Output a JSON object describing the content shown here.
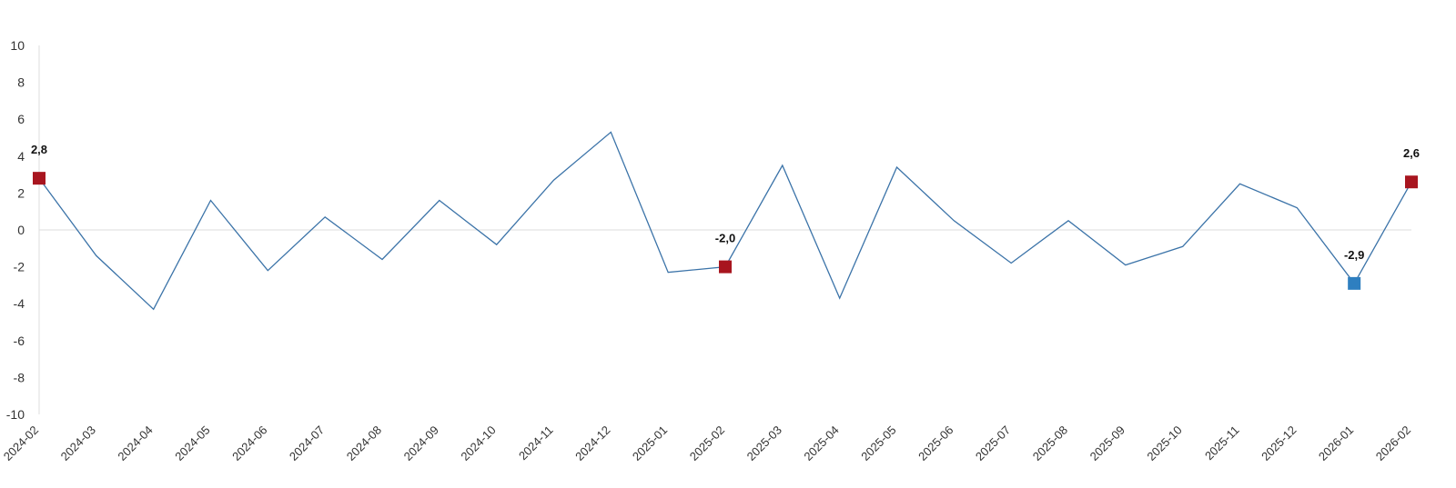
{
  "chart_data": {
    "type": "line",
    "title": "",
    "xlabel": "",
    "ylabel": "",
    "ylim": [
      -10,
      10
    ],
    "yticks": [
      10,
      8,
      6,
      4,
      2,
      0,
      -2,
      -4,
      -6,
      -8,
      -10
    ],
    "grid": false,
    "legend": "none",
    "categories": [
      "2024-02",
      "2024-03",
      "2024-04",
      "2024-05",
      "2024-06",
      "2024-07",
      "2024-08",
      "2024-09",
      "2024-10",
      "2024-11",
      "2024-12",
      "2025-01",
      "2025-02",
      "2025-03",
      "2025-04",
      "2025-05",
      "2025-06",
      "2025-07",
      "2025-08",
      "2025-09",
      "2025-10",
      "2025-11",
      "2025-12",
      "2026-01",
      "2026-02"
    ],
    "series": [
      {
        "color": "#3b73a8",
        "values": [
          2.8,
          -1.4,
          -4.3,
          1.6,
          -2.2,
          0.7,
          -1.6,
          1.6,
          -0.8,
          2.7,
          5.3,
          -2.3,
          -2.0,
          3.5,
          -3.7,
          3.4,
          0.5,
          -1.8,
          0.5,
          -1.9,
          -0.9,
          2.5,
          1.2,
          -2.9,
          2.6
        ]
      }
    ],
    "markers": [
      {
        "category": "2024-02",
        "value": 2.8,
        "label": "2,8",
        "color": "#a8151f"
      },
      {
        "category": "2025-02",
        "value": -2.0,
        "label": "-2,0",
        "color": "#a8151f"
      },
      {
        "category": "2026-01",
        "value": -2.9,
        "label": "-2,9",
        "color": "#2e7fc0"
      },
      {
        "category": "2026-02",
        "value": 2.6,
        "label": "2,6",
        "color": "#a8151f"
      }
    ],
    "axis_color": "#dddddd",
    "zero_line_color": "#dddddd"
  }
}
